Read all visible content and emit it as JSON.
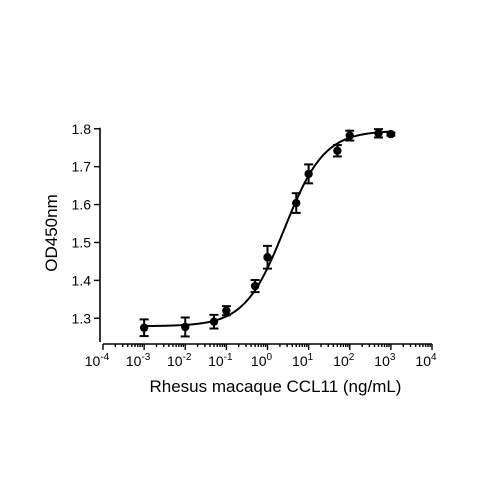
{
  "chart_data": {
    "type": "scatter",
    "x_scale": "log10",
    "xlabel": "Rhesus macaque CCL11 (ng/mL)",
    "ylabel": "OD450nm",
    "xlim": [
      0.0001,
      10000
    ],
    "ylim": [
      1.24,
      1.81
    ],
    "x_ticks": [
      {
        "base": "10",
        "exp": "-4",
        "value": 0.0001
      },
      {
        "base": "10",
        "exp": "-3",
        "value": 0.001
      },
      {
        "base": "10",
        "exp": "-2",
        "value": 0.01
      },
      {
        "base": "10",
        "exp": "-1",
        "value": 0.1
      },
      {
        "base": "10",
        "exp": "0",
        "value": 1
      },
      {
        "base": "10",
        "exp": "1",
        "value": 10
      },
      {
        "base": "10",
        "exp": "2",
        "value": 100
      },
      {
        "base": "10",
        "exp": "3",
        "value": 1000
      },
      {
        "base": "10",
        "exp": "4",
        "value": 10000
      }
    ],
    "y_ticks": [
      {
        "label": "1.3",
        "value": 1.3
      },
      {
        "label": "1.4",
        "value": 1.4
      },
      {
        "label": "1.5",
        "value": 1.5
      },
      {
        "label": "1.6",
        "value": 1.6
      },
      {
        "label": "1.7",
        "value": 1.7
      },
      {
        "label": "1.8",
        "value": 1.8
      }
    ],
    "points": [
      {
        "x": 0.001,
        "y": 1.275,
        "err": 0.022
      },
      {
        "x": 0.01,
        "y": 1.277,
        "err": 0.025
      },
      {
        "x": 0.05,
        "y": 1.291,
        "err": 0.018
      },
      {
        "x": 0.1,
        "y": 1.32,
        "err": 0.012
      },
      {
        "x": 0.5,
        "y": 1.385,
        "err": 0.016
      },
      {
        "x": 1,
        "y": 1.461,
        "err": 0.03
      },
      {
        "x": 5,
        "y": 1.604,
        "err": 0.026
      },
      {
        "x": 10,
        "y": 1.681,
        "err": 0.025
      },
      {
        "x": 50,
        "y": 1.742,
        "err": 0.015
      },
      {
        "x": 100,
        "y": 1.782,
        "err": 0.013
      },
      {
        "x": 500,
        "y": 1.788,
        "err": 0.011
      },
      {
        "x": 1000,
        "y": 1.786,
        "err": 0.004
      }
    ],
    "fit_curve": {
      "model": "4PL",
      "bottom": 1.279,
      "top": 1.795,
      "ec50": 2.6,
      "hill": 0.9,
      "x_range": [
        0.001,
        1000
      ]
    },
    "grid": false,
    "legend": "none"
  }
}
